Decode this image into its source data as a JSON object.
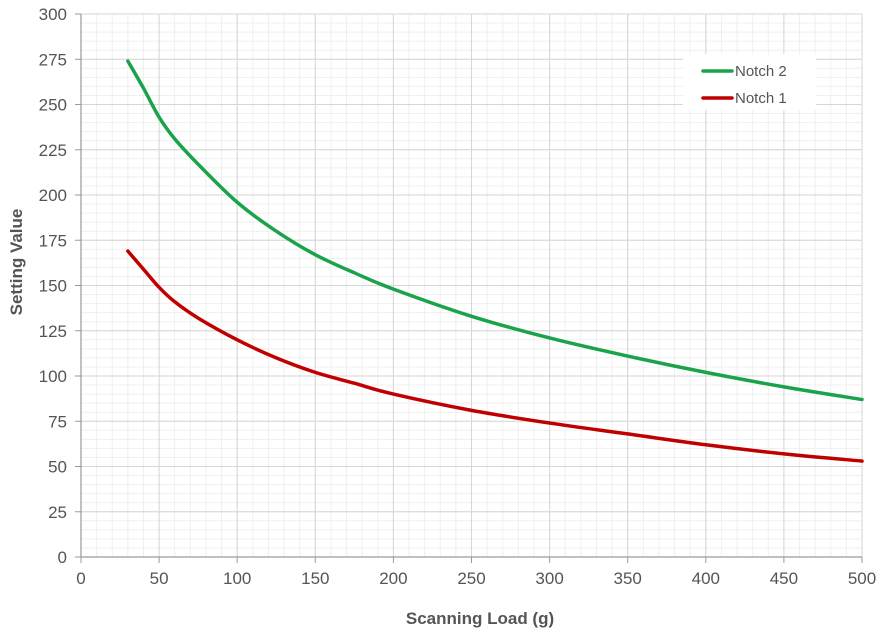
{
  "chart_data": {
    "type": "line",
    "xlabel": "Scanning Load (g)",
    "ylabel": "Setting Value",
    "xlim": [
      0,
      500
    ],
    "ylim": [
      0,
      300
    ],
    "x_ticks": [
      0,
      50,
      100,
      150,
      200,
      250,
      300,
      350,
      400,
      450,
      500
    ],
    "y_ticks": [
      0,
      25,
      50,
      75,
      100,
      125,
      150,
      175,
      200,
      225,
      250,
      275,
      300
    ],
    "x_minor_step": 10,
    "y_minor_step": 5,
    "grid": true,
    "legend_position": "top-right",
    "series": [
      {
        "name": "Notch 2",
        "color": "#1aa34a",
        "x": [
          30,
          40,
          50,
          60,
          75,
          100,
          125,
          150,
          175,
          200,
          250,
          300,
          350,
          400,
          450,
          500
        ],
        "y": [
          274,
          259,
          243,
          231,
          217,
          196,
          180,
          167,
          157,
          148,
          133,
          121,
          111,
          102,
          94,
          87
        ]
      },
      {
        "name": "Notch 1",
        "color": "#c00000",
        "x": [
          30,
          40,
          50,
          60,
          75,
          100,
          125,
          150,
          175,
          200,
          250,
          300,
          350,
          400,
          450,
          500
        ],
        "y": [
          169,
          159,
          149,
          141,
          132,
          120,
          110,
          102,
          96,
          90,
          81,
          74,
          68,
          62,
          57,
          53
        ]
      }
    ]
  }
}
